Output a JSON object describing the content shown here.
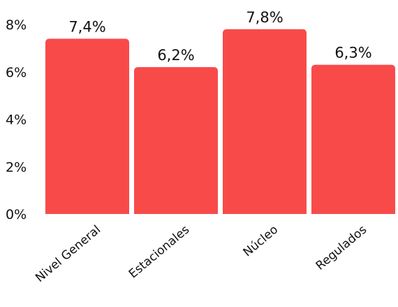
{
  "chart_data": {
    "type": "bar",
    "categories": [
      "Nivel General",
      "Estacionales",
      "Núcleo",
      "Regulados"
    ],
    "values": [
      7.4,
      6.2,
      7.8,
      6.3
    ],
    "value_labels": [
      "7,4%",
      "6,2%",
      "7,8%",
      "6,3%"
    ],
    "ylim": [
      0,
      8
    ],
    "yticks": [
      0,
      2,
      4,
      6,
      8
    ],
    "ytick_labels": [
      "0%",
      "2%",
      "4%",
      "6%",
      "8%"
    ],
    "bar_color": "#f94a4a",
    "grid": false,
    "legend": "none",
    "title": "",
    "xlabel": "",
    "ylabel": ""
  }
}
